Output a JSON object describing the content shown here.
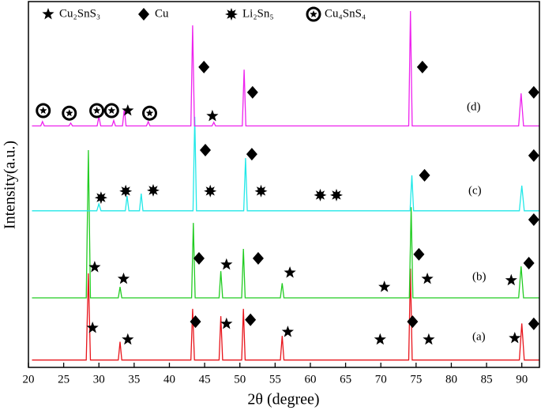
{
  "chart_data": {
    "type": "line",
    "x_label": "2θ (degree)",
    "y_label": "Intensity(a.u.)",
    "xlim": [
      20,
      92.5
    ],
    "xticks": [
      20,
      25,
      30,
      35,
      40,
      45,
      50,
      55,
      60,
      65,
      70,
      75,
      80,
      85,
      90
    ],
    "ylim": [
      0,
      100
    ],
    "series": [
      {
        "name": "(a)",
        "color": "#e8141b",
        "x": [
          20.5,
          28.2,
          28.5,
          28.8,
          32.75,
          33,
          33.25,
          43.05,
          43.3,
          43.55,
          47.05,
          47.3,
          47.55,
          50.25,
          50.5,
          50.75,
          55.75,
          56,
          56.25,
          73.95,
          74.2,
          74.45,
          89.65,
          90,
          90.35,
          92.5
        ],
        "values": [
          2,
          2,
          25.7,
          2,
          2,
          7,
          2,
          2,
          16,
          2,
          2,
          14,
          2,
          2,
          16,
          2,
          2,
          8.6,
          2,
          2,
          27,
          2,
          2,
          12,
          2,
          2
        ]
      },
      {
        "name": "(b)",
        "color": "#22cc22",
        "x": [
          20.5,
          28.2,
          28.5,
          28.8,
          32.75,
          33,
          33.25,
          43.15,
          43.4,
          43.65,
          47.05,
          47.3,
          47.55,
          50.25,
          50.5,
          50.75,
          55.75,
          56,
          56.25,
          74.05,
          74.3,
          74.55,
          89.55,
          89.9,
          90.25,
          92.5
        ],
        "values": [
          19,
          19,
          59.4,
          19,
          19,
          22,
          19,
          19,
          39.5,
          19,
          19,
          26.3,
          19,
          19,
          32.4,
          19,
          19,
          23,
          19,
          19,
          43.8,
          19,
          19,
          27.6,
          19,
          19
        ]
      },
      {
        "name": "(c)",
        "color": "#22e8e8",
        "x": [
          20.5,
          29.7,
          30,
          30.3,
          33.75,
          34,
          34.25,
          35.75,
          36,
          36.25,
          43.35,
          43.6,
          43.85,
          50.55,
          50.8,
          51.05,
          74.15,
          74.4,
          74.65,
          89.65,
          90,
          90.35,
          92.5
        ],
        "values": [
          42.8,
          42.8,
          44.7,
          42.8,
          42.8,
          46.9,
          42.8,
          42.8,
          47.5,
          42.8,
          42.8,
          68.5,
          42.8,
          42.8,
          57.2,
          42.8,
          42.8,
          52.5,
          42.8,
          42.8,
          49.7,
          42.8,
          42.8
        ]
      },
      {
        "name": "(d)",
        "color": "#ee22ee",
        "x": [
          20.5,
          21.75,
          22,
          22.25,
          25.75,
          26,
          26.25,
          29.75,
          30,
          30.25,
          31.85,
          32.1,
          32.35,
          33.35,
          33.6,
          33.85,
          36.75,
          37,
          37.25,
          43.05,
          43.3,
          43.55,
          46.05,
          46.3,
          46.55,
          50.35,
          50.6,
          50.85,
          73.95,
          74.2,
          74.45,
          89.55,
          89.9,
          90.25,
          92.5
        ],
        "values": [
          66,
          66,
          67.2,
          66,
          66,
          66.8,
          66,
          66,
          68.6,
          66,
          66,
          67.5,
          66,
          66,
          70.7,
          66,
          66,
          67.2,
          66,
          66,
          93.5,
          66,
          66,
          67,
          66,
          66,
          81.4,
          66,
          66,
          97.4,
          66,
          66,
          74.9,
          66,
          66
        ]
      }
    ],
    "phases": [
      {
        "name": "Cu₂SnS₃",
        "symbol": "star",
        "points": [
          [
            29.1,
            10.8
          ],
          [
            34.1,
            7.6
          ],
          [
            48.1,
            11.9
          ],
          [
            56.8,
            9.7
          ],
          [
            69.9,
            7.6
          ],
          [
            76.8,
            7.6
          ],
          [
            89,
            8
          ],
          [
            29.4,
            27.4
          ],
          [
            33.5,
            24.2
          ],
          [
            48.1,
            28.1
          ],
          [
            57.1,
            25.9
          ],
          [
            70.5,
            22
          ],
          [
            76.6,
            24.2
          ],
          [
            88.5,
            23.8
          ],
          [
            34.1,
            70.2
          ],
          [
            46.1,
            68.7
          ]
        ]
      },
      {
        "name": "Cu",
        "symbol": "diamond",
        "points": [
          [
            43.7,
            12.5
          ],
          [
            51.5,
            13
          ],
          [
            74.5,
            12.5
          ],
          [
            91.7,
            11.9
          ],
          [
            44.2,
            29.8
          ],
          [
            52.6,
            29.8
          ],
          [
            75.4,
            30.9
          ],
          [
            91,
            28.5
          ],
          [
            91.7,
            40.4
          ],
          [
            45.1,
            59.4
          ],
          [
            51.7,
            58.3
          ],
          [
            76.2,
            52.5
          ],
          [
            91.7,
            57.9
          ],
          [
            44.9,
            82.1
          ],
          [
            51.8,
            75.2
          ],
          [
            75.9,
            82.1
          ],
          [
            91.7,
            75.2
          ]
        ]
      },
      {
        "name": "Li₂Sn₅",
        "symbol": "burst",
        "points": [
          [
            30.3,
            46.4
          ],
          [
            33.8,
            48.2
          ],
          [
            37.7,
            48.4
          ],
          [
            45.8,
            48.2
          ],
          [
            53,
            48.2
          ],
          [
            61.4,
            47.1
          ],
          [
            63.7,
            47.1
          ]
        ]
      },
      {
        "name": "Cu₄SnS₄",
        "symbol": "circle-star",
        "points": [
          [
            22.1,
            70.2
          ],
          [
            25.8,
            69.5
          ],
          [
            29.7,
            70.2
          ],
          [
            31.8,
            70.2
          ],
          [
            37.2,
            69.5
          ]
        ]
      }
    ]
  }
}
